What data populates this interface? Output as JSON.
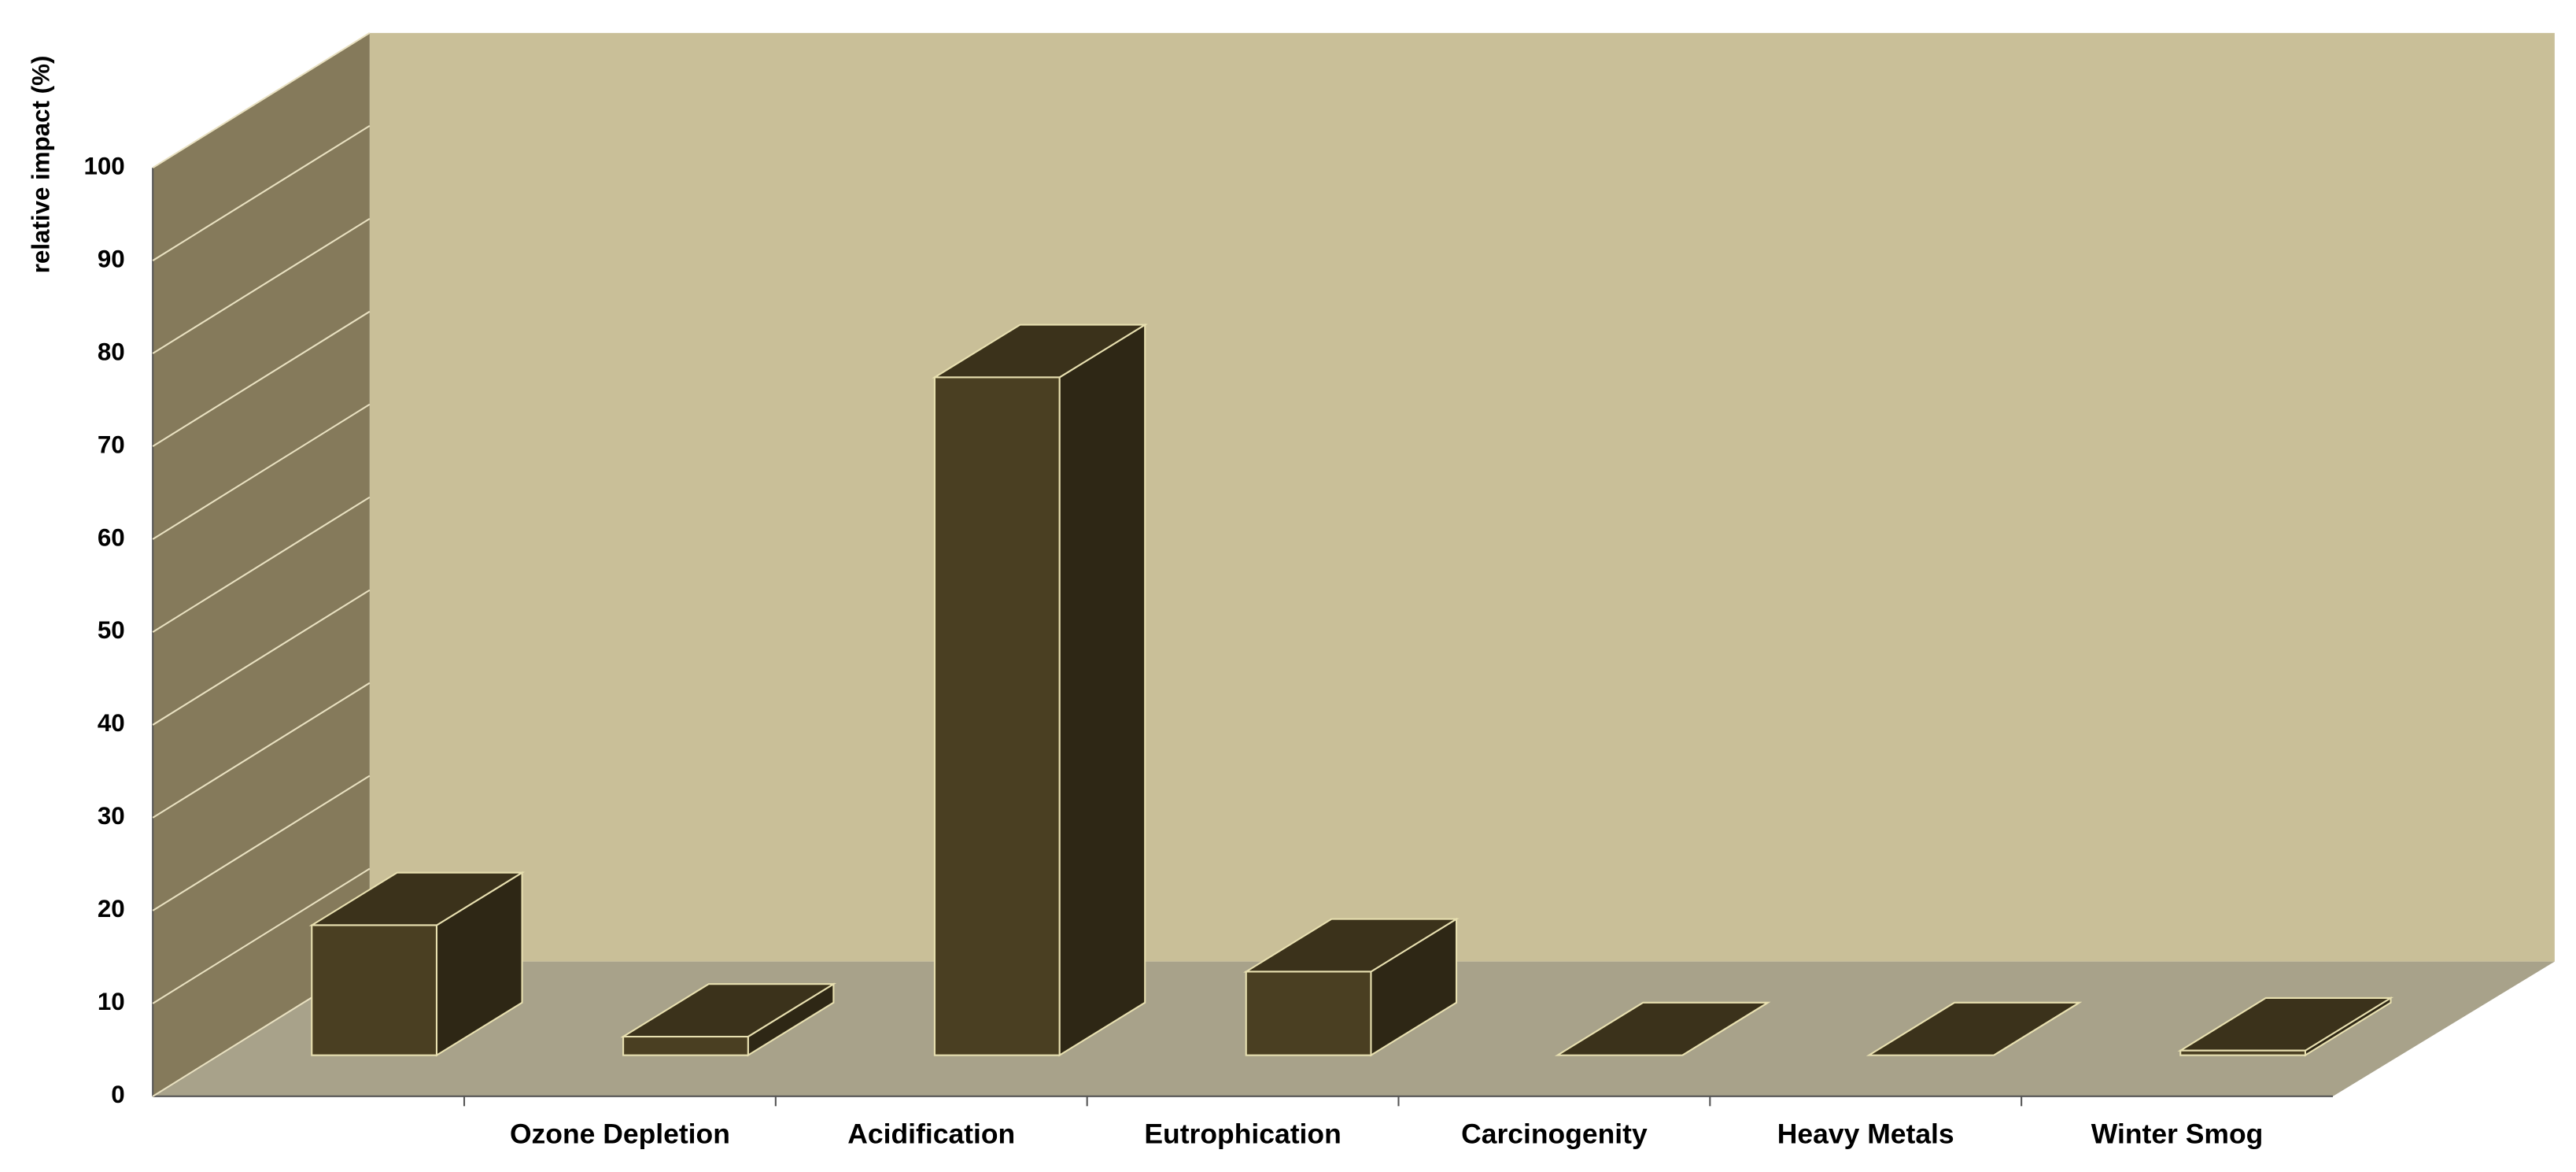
{
  "chart_data": {
    "type": "bar3d",
    "y_label": "relative impact (%)",
    "categories": [
      null,
      "Ozone Depletion",
      "Acidification",
      "Eutrophication",
      "Carcinogenity",
      "Heavy Metals",
      "Winter Smog"
    ],
    "values": [
      14,
      2,
      73,
      9,
      0,
      0,
      0.5
    ],
    "color": "#4a3f22",
    "ylim": [
      0,
      100
    ],
    "yticks": [
      0,
      10,
      20,
      30,
      40,
      50,
      60,
      70,
      80,
      90,
      100
    ],
    "grid": true
  }
}
